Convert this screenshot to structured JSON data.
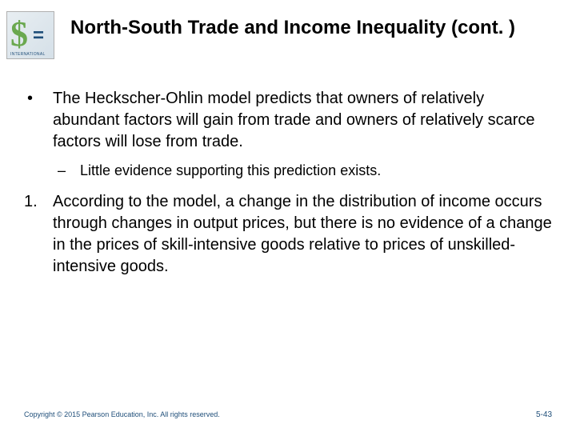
{
  "title": "North-South Trade and Income Inequality (cont. )",
  "colors": {
    "text": "#000000",
    "footer_text": "#1f4e79",
    "icon_green": "#6aa84f",
    "icon_blue": "#1f4e79",
    "icon_border": "#b0b0b0",
    "background": "#ffffff"
  },
  "icon": {
    "symbol_left": "$",
    "symbol_right": "=",
    "bottom_label": "INTERNATIONAL"
  },
  "bullets": [
    {
      "marker": "•",
      "text": "The Heckscher-Ohlin model predicts that owners of relatively abundant factors will gain from trade and owners of relatively scarce factors will lose from trade.",
      "sub": [
        {
          "marker": "–",
          "text": "Little evidence supporting this prediction exists."
        }
      ]
    },
    {
      "marker": "1.",
      "text": "According to the model, a change in the distribution of income occurs through changes in output prices, but there is no evidence of a change in the prices of skill-intensive goods relative to prices of unskilled-intensive goods."
    }
  ],
  "footer": {
    "copyright": "Copyright © 2015 Pearson Education, Inc. All rights reserved.",
    "page": "5-43"
  }
}
